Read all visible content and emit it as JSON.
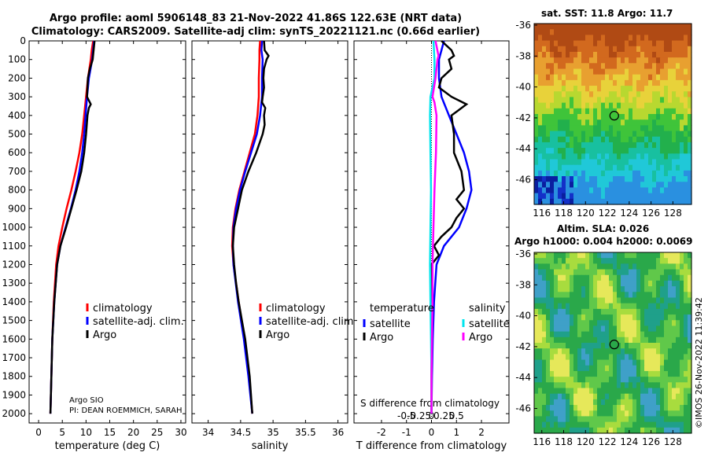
{
  "header": {
    "line1": "Argo profile: aoml 5906148_83 21-Nov-2022 41.86S 122.63E (NRT data)",
    "line2": "Climatology: CARS2009. Satellite-adj clim: synTS_20221121.nc (0.66d earlier)"
  },
  "colors": {
    "climatology": "#ff0000",
    "satellite": "#0000ff",
    "argo": "#000000",
    "sal_sat": "#00e5ee",
    "sal_argo": "#ff00ff"
  },
  "chart_data": [
    {
      "type": "line",
      "id": "temperature",
      "xlabel": "temperature (deg C)",
      "ylabel": "",
      "xlim": [
        -2,
        31
      ],
      "ylim": [
        2050,
        0
      ],
      "xticks": [
        "0",
        "5",
        "10",
        "15",
        "20",
        "25",
        "30"
      ],
      "xtick_values": [
        0,
        5,
        10,
        15,
        20,
        25,
        30
      ],
      "yticks": [
        "0",
        "100",
        "200",
        "300",
        "400",
        "500",
        "600",
        "700",
        "800",
        "900",
        "1000",
        "1100",
        "1200",
        "1300",
        "1400",
        "1500",
        "1600",
        "1700",
        "1800",
        "1900",
        "2000"
      ],
      "legend": [
        "climatology",
        "satellite-adj. clim.",
        "Argo"
      ],
      "annotation_lines": [
        "Argo SIO",
        "PI: DEAN ROEMMICH, SARAH"
      ],
      "series": [
        {
          "name": "climatology",
          "depth": [
            0,
            50,
            100,
            200,
            300,
            400,
            500,
            600,
            700,
            800,
            900,
            1000,
            1100,
            1200,
            1400,
            1600,
            1800,
            2000
          ],
          "values": [
            11.5,
            11.2,
            11.0,
            10.4,
            10.0,
            9.6,
            9.2,
            8.6,
            7.8,
            6.9,
            5.9,
            5.0,
            4.2,
            3.7,
            3.2,
            2.9,
            2.7,
            2.5
          ]
        },
        {
          "name": "satellite-adj. clim.",
          "depth": [
            0,
            50,
            100,
            200,
            300,
            400,
            500,
            600,
            700,
            800,
            900,
            1000,
            1100,
            1200,
            1400,
            1600,
            1800,
            2000
          ],
          "values": [
            11.7,
            11.5,
            11.3,
            10.6,
            10.2,
            9.9,
            9.6,
            9.2,
            8.6,
            7.8,
            6.8,
            5.7,
            4.6,
            3.9,
            3.3,
            2.9,
            2.7,
            2.5
          ]
        },
        {
          "name": "Argo",
          "depth": [
            0,
            50,
            100,
            150,
            200,
            300,
            340,
            360,
            400,
            500,
            600,
            700,
            800,
            900,
            1000,
            1100,
            1200,
            1400,
            1600,
            1800,
            2000
          ],
          "values": [
            11.8,
            11.6,
            11.4,
            10.8,
            10.4,
            10.2,
            11.0,
            10.6,
            10.3,
            10.0,
            9.6,
            9.0,
            8.0,
            6.9,
            5.8,
            4.6,
            3.9,
            3.3,
            2.9,
            2.7,
            2.5
          ]
        }
      ]
    },
    {
      "type": "line",
      "id": "salinity",
      "xlabel": "salinity",
      "ylabel": "",
      "xlim": [
        33.75,
        36.15
      ],
      "ylim": [
        2050,
        0
      ],
      "xticks": [
        "34",
        "34.5",
        "35",
        "35.5",
        "36"
      ],
      "xtick_values": [
        34,
        34.5,
        35,
        35.5,
        36
      ],
      "legend": [
        "climatology",
        "satellite-adj. clim.",
        "Argo"
      ],
      "series": [
        {
          "name": "climatology",
          "depth": [
            0,
            50,
            100,
            200,
            300,
            400,
            500,
            600,
            700,
            800,
            900,
            1000,
            1100,
            1200,
            1400,
            1600,
            1800,
            2000
          ],
          "values": [
            34.8,
            34.79,
            34.79,
            34.78,
            34.78,
            34.76,
            34.72,
            34.64,
            34.56,
            34.48,
            34.42,
            34.38,
            34.37,
            34.39,
            34.47,
            34.56,
            34.63,
            34.68
          ]
        },
        {
          "name": "satellite-adj. clim.",
          "depth": [
            0,
            50,
            100,
            200,
            300,
            400,
            500,
            600,
            700,
            800,
            900,
            1000,
            1100,
            1200,
            1400,
            1600,
            1800,
            2000
          ],
          "values": [
            34.83,
            34.82,
            34.84,
            34.83,
            34.83,
            34.8,
            34.75,
            34.66,
            34.57,
            34.49,
            34.43,
            34.39,
            34.38,
            34.39,
            34.46,
            34.55,
            34.62,
            34.68
          ]
        },
        {
          "name": "Argo",
          "depth": [
            0,
            50,
            80,
            100,
            150,
            200,
            250,
            300,
            330,
            360,
            400,
            450,
            500,
            600,
            700,
            800,
            900,
            1000,
            1100,
            1200,
            1300,
            1400,
            1500,
            1600,
            1800,
            2000
          ],
          "values": [
            34.86,
            34.87,
            34.93,
            34.9,
            34.86,
            34.85,
            34.86,
            34.84,
            34.83,
            34.88,
            34.86,
            34.87,
            34.84,
            34.74,
            34.62,
            34.52,
            34.46,
            34.4,
            34.38,
            34.4,
            34.43,
            34.47,
            34.52,
            34.57,
            34.64,
            34.68
          ]
        }
      ]
    },
    {
      "type": "line",
      "id": "difference",
      "xlabel": "T difference from climatology",
      "xlim": [
        -3.1,
        3.1
      ],
      "ylim": [
        2050,
        0
      ],
      "xticks": [
        "-2",
        "-1",
        "0",
        "1",
        "2"
      ],
      "xtick_values": [
        -2,
        -1,
        0,
        1,
        2
      ],
      "sal_axis_label": "S difference from climatology",
      "sal_ticks": [
        "-0.5",
        "-0.25",
        "0",
        "0.25",
        "0.5"
      ],
      "sal_tick_values": [
        -0.5,
        -0.25,
        0,
        0.25,
        0.5
      ],
      "legend_titles": {
        "temperature": "temperature",
        "salinity": "salinity"
      },
      "legend_temp": [
        "satellite",
        "Argo"
      ],
      "legend_sal": [
        "satellite",
        "Argo"
      ],
      "series": [
        {
          "name": "temperature satellite",
          "depth": [
            0,
            100,
            200,
            300,
            400,
            500,
            600,
            700,
            800,
            900,
            1000,
            1100,
            1200,
            1400,
            1600,
            1800,
            2000
          ],
          "values": [
            0.5,
            0.3,
            0.3,
            0.4,
            0.7,
            1.0,
            1.3,
            1.5,
            1.6,
            1.4,
            1.1,
            0.5,
            0.2,
            0.1,
            0.05,
            0.02,
            0.0
          ]
        },
        {
          "name": "temperature Argo",
          "depth": [
            0,
            50,
            80,
            100,
            150,
            200,
            250,
            300,
            340,
            380,
            400,
            500,
            600,
            700,
            800,
            850,
            900,
            950,
            1000,
            1050,
            1100,
            1150,
            1200,
            1400,
            1600,
            1800,
            2000
          ],
          "values": [
            0.4,
            0.8,
            0.9,
            0.7,
            0.8,
            0.4,
            0.3,
            0.8,
            1.4,
            1.0,
            0.8,
            0.9,
            0.9,
            1.2,
            1.3,
            1.0,
            1.3,
            1.0,
            0.8,
            0.4,
            0.1,
            0.3,
            0.0,
            0.0,
            0.0,
            0.0,
            0.0
          ]
        },
        {
          "name": "salinity satellite",
          "depth": [
            0,
            100,
            200,
            300,
            400,
            600,
            800,
            1000,
            1200,
            1400,
            1600,
            1800,
            2000
          ],
          "values": [
            0.04,
            0.06,
            0.06,
            -0.02,
            -0.03,
            -0.02,
            -0.01,
            -0.02,
            -0.03,
            -0.02,
            -0.01,
            0.0,
            0.0
          ]
        },
        {
          "name": "salinity Argo",
          "depth": [
            0,
            80,
            100,
            200,
            300,
            330,
            400,
            600,
            800,
            1000,
            1200,
            1400,
            1600,
            1800,
            2000
          ],
          "values": [
            0.08,
            0.14,
            0.12,
            0.08,
            0.02,
            0.06,
            0.1,
            0.09,
            0.06,
            0.04,
            0.02,
            0.02,
            0.01,
            0.0,
            0.0
          ]
        }
      ]
    }
  ],
  "maps": {
    "sst": {
      "title": "sat. SST: 11.8 Argo: 11.7",
      "yticks": [
        "-36",
        "-38",
        "-40",
        "-42",
        "-44",
        "-46"
      ],
      "ytick_values": [
        -36,
        -38,
        -40,
        -42,
        -44,
        -46
      ],
      "xticks": [
        "116",
        "118",
        "120",
        "122",
        "124",
        "126",
        "128"
      ],
      "xtick_values": [
        116,
        118,
        120,
        122,
        124,
        126,
        128
      ],
      "float_lon": 122.63,
      "float_lat": -41.86
    },
    "sla": {
      "title1": "Altim. SLA: 0.026",
      "title2": "Argo h1000: 0.004 h2000: 0.0069",
      "yticks": [
        "-36",
        "-38",
        "-40",
        "-42",
        "-44",
        "-46"
      ],
      "ytick_values": [
        -36,
        -38,
        -40,
        -42,
        -44,
        -46
      ],
      "xticks": [
        "116",
        "118",
        "120",
        "122",
        "124",
        "126",
        "128"
      ],
      "xtick_values": [
        116,
        118,
        120,
        122,
        124,
        126,
        128
      ],
      "float_lon": 122.63,
      "float_lat": -41.86
    }
  },
  "footer": {
    "credit": "©IMOS 26-Nov-2022 11:39:42"
  }
}
